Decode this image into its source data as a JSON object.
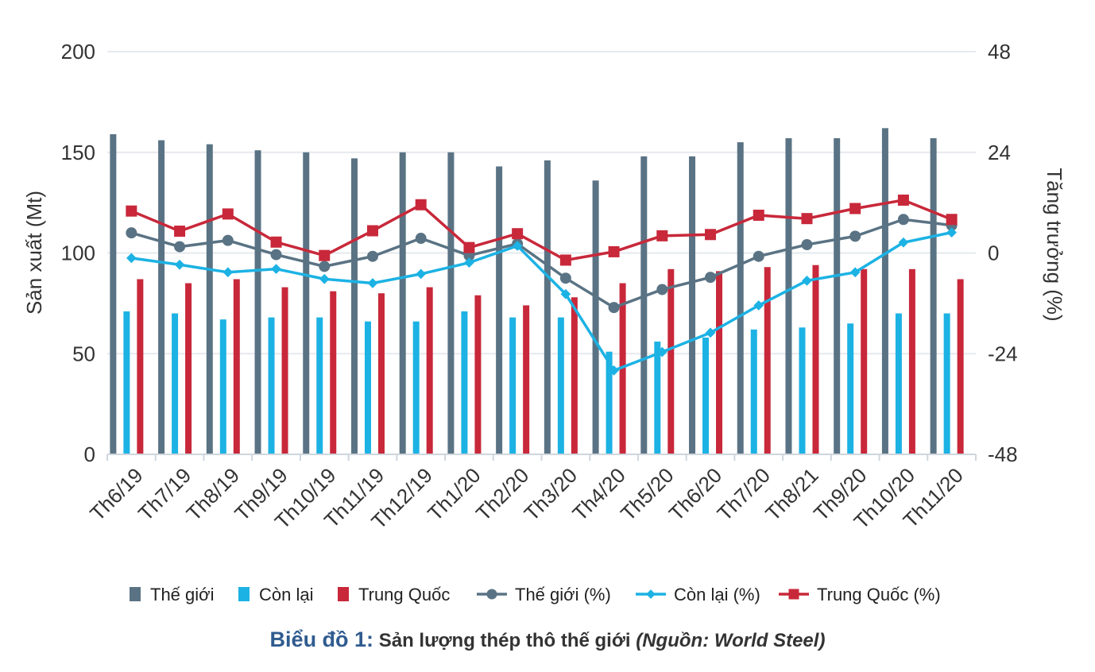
{
  "chart_data": {
    "type": "bar",
    "categories": [
      "Th6/19",
      "Th7/19",
      "Th8/19",
      "Th9/19",
      "Th10/19",
      "Th11/19",
      "Th12/19",
      "Th1/20",
      "Th2/20",
      "Th3/20",
      "Th4/20",
      "Th5/20",
      "Th6/20",
      "Th7/20",
      "Th8/21",
      "Th9/20",
      "Th10/20",
      "Th11/20"
    ],
    "ylabel": "Sản xuất (Mt)",
    "ylabel_right": "Tăng trưởng (%)",
    "ylim": [
      0,
      200
    ],
    "yticks": [
      "0",
      "50",
      "100",
      "150",
      "200"
    ],
    "ylim_right": [
      -48,
      48
    ],
    "yticks_right": [
      "-48",
      "-24",
      "0",
      "24",
      "48"
    ],
    "grid": true,
    "legend_position": "bottom",
    "series": [
      {
        "name": "Thế giới",
        "kind": "bar",
        "axis": "left",
        "color": "#5a7384",
        "values": [
          159,
          156,
          154,
          151,
          150,
          147,
          150,
          150,
          143,
          146,
          136,
          148,
          148,
          155,
          157,
          157,
          162,
          157
        ]
      },
      {
        "name": "Còn lại",
        "kind": "bar",
        "axis": "left",
        "color": "#1cb2e4",
        "values": [
          71,
          70,
          67,
          68,
          68,
          66,
          66,
          71,
          68,
          68,
          51,
          56,
          58,
          62,
          63,
          65,
          70,
          70
        ]
      },
      {
        "name": "Trung Quốc",
        "kind": "bar",
        "axis": "left",
        "color": "#c8283a",
        "values": [
          87,
          85,
          87,
          83,
          81,
          80,
          83,
          79,
          74,
          78,
          85,
          92,
          91,
          93,
          94,
          92,
          92,
          87
        ]
      },
      {
        "name": "Thế giới (%)",
        "kind": "line",
        "marker": "circle",
        "axis": "right",
        "color": "#5a7384",
        "values": [
          4.8,
          1.5,
          3.0,
          -0.4,
          -3.2,
          -0.8,
          3.5,
          -0.6,
          2.2,
          -6.0,
          -13.0,
          -8.7,
          -5.8,
          -0.8,
          2.0,
          4.0,
          8.0,
          6.6
        ]
      },
      {
        "name": "Còn lại (%)",
        "kind": "line",
        "marker": "diamond",
        "axis": "right",
        "color": "#1cb2e4",
        "values": [
          -1.2,
          -2.8,
          -4.6,
          -3.8,
          -6.2,
          -7.2,
          -5.0,
          -2.3,
          1.7,
          -9.8,
          -28.0,
          -23.6,
          -19.0,
          -12.5,
          -6.6,
          -4.6,
          2.5,
          4.9
        ]
      },
      {
        "name": "Trung Quốc (%)",
        "kind": "line",
        "marker": "square",
        "axis": "right",
        "color": "#c8283a",
        "values": [
          10.0,
          5.2,
          9.3,
          2.6,
          -0.6,
          5.3,
          11.5,
          1.3,
          4.6,
          -1.7,
          0.3,
          4.1,
          4.4,
          9.0,
          8.2,
          10.6,
          12.6,
          8.0
        ]
      }
    ]
  },
  "caption": {
    "lead": "Biểu đồ 1:",
    "main": "Sản lượng thép thô thế giới",
    "source": "(Nguồn: World Steel)"
  }
}
